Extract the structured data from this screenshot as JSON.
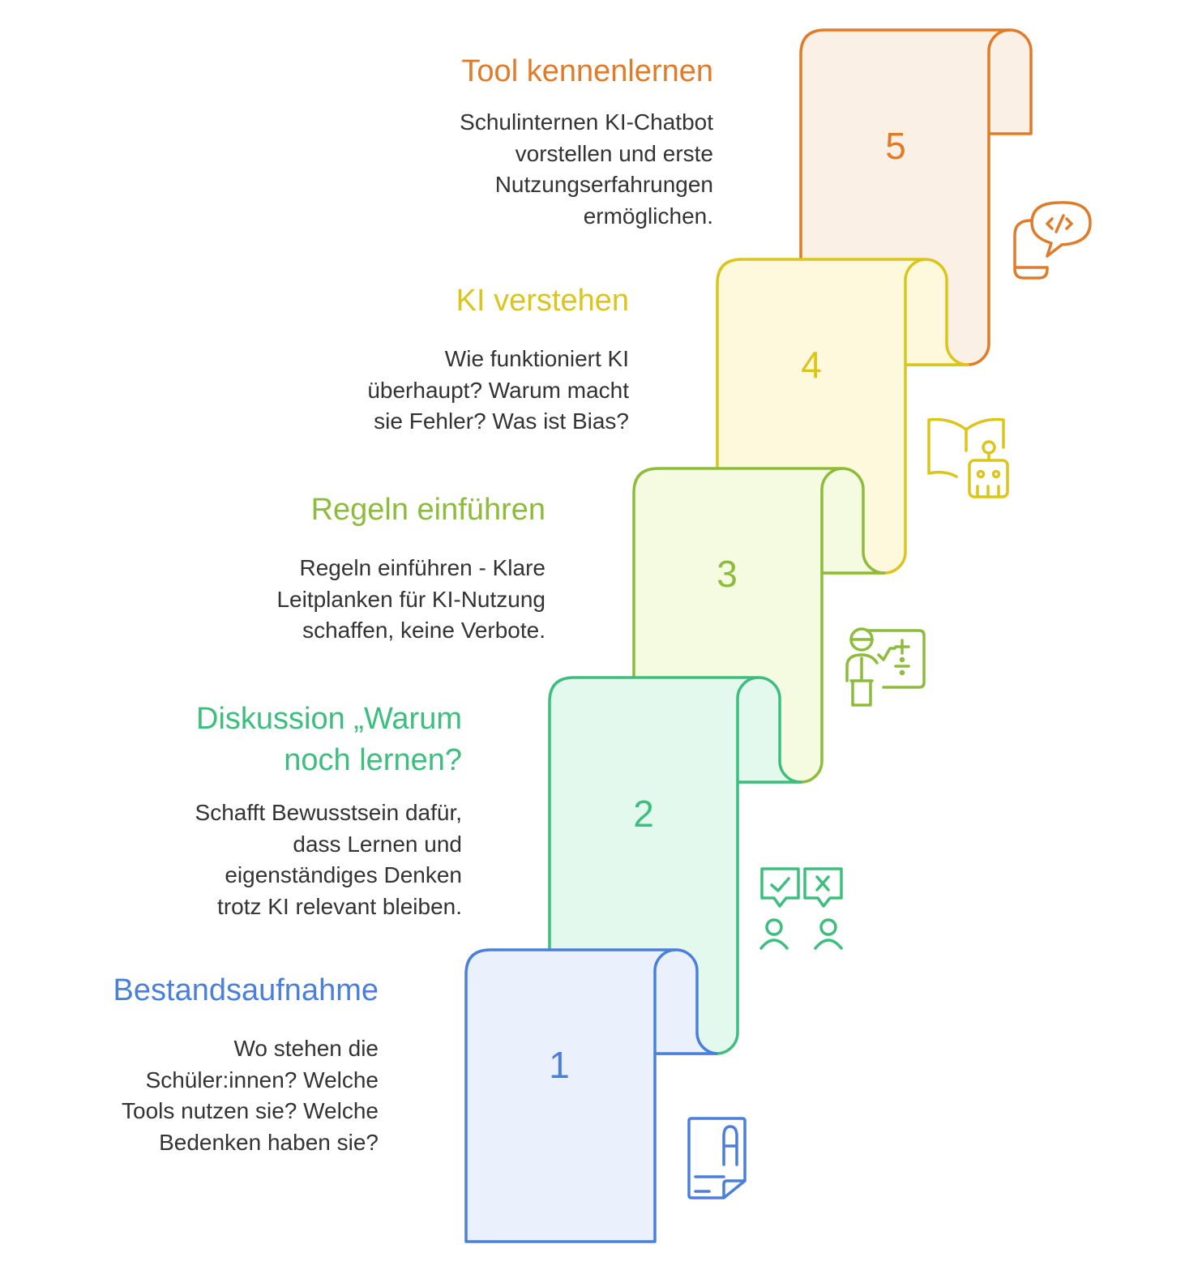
{
  "steps": [
    {
      "number": "1",
      "title": "Bestandsaufnahme",
      "description": [
        "Wo stehen die",
        "Schüler:innen? Welche",
        "Tools nutzen sie? Welche",
        "Bedenken haben sie?"
      ],
      "icon": "document-letter-icon",
      "color": "#4A7FDB",
      "fill": "#EAF1FC"
    },
    {
      "number": "2",
      "title": [
        "Diskussion „Warum",
        "noch lernen?"
      ],
      "description": [
        "Schafft Bewusstsein dafür,",
        "dass Lernen und",
        "eigenständiges Denken",
        "trotz KI relevant bleiben."
      ],
      "icon": "debate-people-icon",
      "color": "#3DBE7E",
      "fill": "#E3F9EE"
    },
    {
      "number": "3",
      "title": "Regeln einführen",
      "description": [
        "Regeln einführen - Klare",
        "Leitplanken für KI-Nutzung",
        "schaffen, keine Verbote."
      ],
      "icon": "teacher-board-icon",
      "color": "#8DBB3A",
      "fill": "#F4FBE0"
    },
    {
      "number": "4",
      "title": "KI verstehen",
      "description": [
        "Wie funktioniert KI",
        "überhaupt? Warum macht",
        "sie Fehler? Was ist Bias?"
      ],
      "icon": "book-robot-icon",
      "color": "#DCC51B",
      "fill": "#FEF9DC"
    },
    {
      "number": "5",
      "title": "Tool kennenlernen",
      "description": [
        "Schulinternen KI-Chatbot",
        "vorstellen und erste",
        "Nutzungserfahrungen",
        "ermöglichen."
      ],
      "icon": "device-code-chat-icon",
      "color": "#E07B2A",
      "fill": "#FBF0E6"
    }
  ]
}
